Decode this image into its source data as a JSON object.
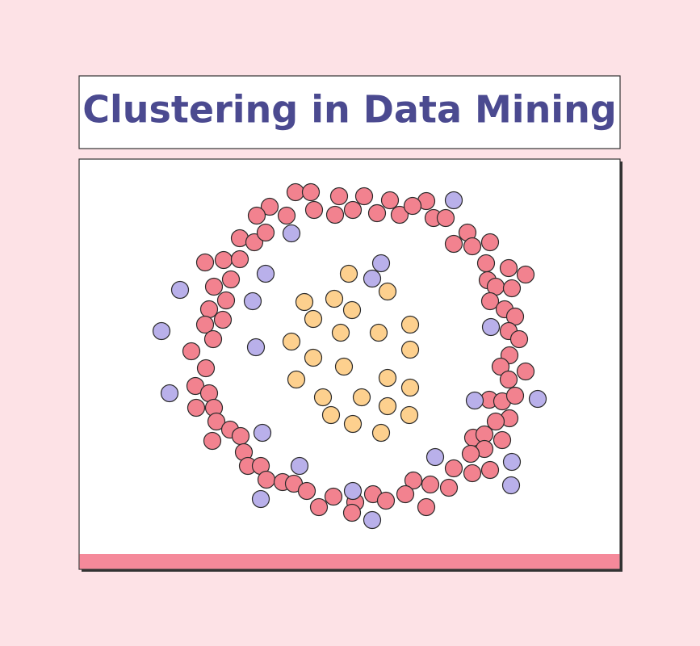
{
  "title": "Clustering in Data Mining"
}
